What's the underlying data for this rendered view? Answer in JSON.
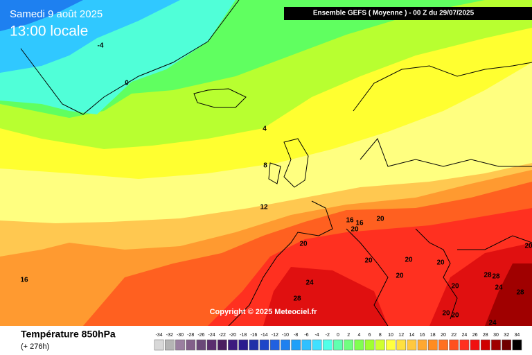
{
  "header": {
    "date": "Samedi 9 août 2025",
    "time": "13:00 locale",
    "model": "Ensemble GEFS  ( Moyenne )  -  00 Z du 29/07/2025"
  },
  "copyright": "Copyright © 2025 Meteociel.fr",
  "footer": {
    "title": "Température 850hPa",
    "subtitle": "(+ 276h)"
  },
  "contour_labels": [
    -4,
    0,
    4,
    8,
    12,
    16,
    16,
    16,
    20,
    20,
    20,
    20,
    20,
    20,
    20,
    24,
    28,
    28,
    28,
    24,
    28,
    20,
    20,
    20,
    24,
    20
  ],
  "legend": {
    "values": [
      -34,
      -32,
      -30,
      -28,
      -26,
      -24,
      -22,
      -20,
      -18,
      -16,
      -14,
      -12,
      -10,
      -8,
      -6,
      -4,
      -2,
      0,
      2,
      4,
      6,
      8,
      10,
      12,
      14,
      16,
      18,
      20,
      22,
      24,
      26,
      28,
      30,
      32,
      34
    ],
    "colors": [
      "#d8d8d8",
      "#b4b4b4",
      "#9a7fa0",
      "#82608a",
      "#6a4878",
      "#5a2e6e",
      "#4a1e60",
      "#3c1a7e",
      "#2a1a8e",
      "#2030a8",
      "#1e46c8",
      "#2060e0",
      "#1e80f0",
      "#20a0f8",
      "#30c0ff",
      "#40e0ff",
      "#50ffe8",
      "#60ffb0",
      "#70ff80",
      "#80ff50",
      "#a0ff30",
      "#d0ff30",
      "#ffff40",
      "#ffe040",
      "#ffc840",
      "#ffa830",
      "#ff8c20",
      "#ff7020",
      "#ff5020",
      "#ff3020",
      "#f01010",
      "#d00000",
      "#a00000",
      "#700000",
      "#000000"
    ]
  }
}
